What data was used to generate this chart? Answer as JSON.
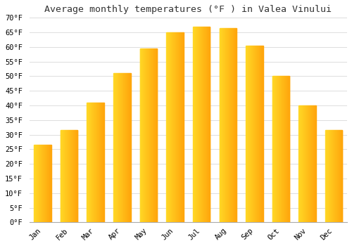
{
  "title": "Average monthly temperatures (°F ) in Valea Vinului",
  "months": [
    "Jan",
    "Feb",
    "Mar",
    "Apr",
    "May",
    "Jun",
    "Jul",
    "Aug",
    "Sep",
    "Oct",
    "Nov",
    "Dec"
  ],
  "values": [
    26.5,
    31.5,
    41.0,
    51.0,
    59.5,
    65.0,
    67.0,
    66.5,
    60.5,
    50.0,
    40.0,
    31.5
  ],
  "bar_color_left": "#FFCC44",
  "bar_color_right": "#FF9900",
  "background_color": "#FFFFFF",
  "grid_color": "#DDDDDD",
  "ylim": [
    0,
    70
  ],
  "yticks": [
    0,
    5,
    10,
    15,
    20,
    25,
    30,
    35,
    40,
    45,
    50,
    55,
    60,
    65,
    70
  ],
  "title_fontsize": 9.5,
  "tick_fontsize": 7.5
}
